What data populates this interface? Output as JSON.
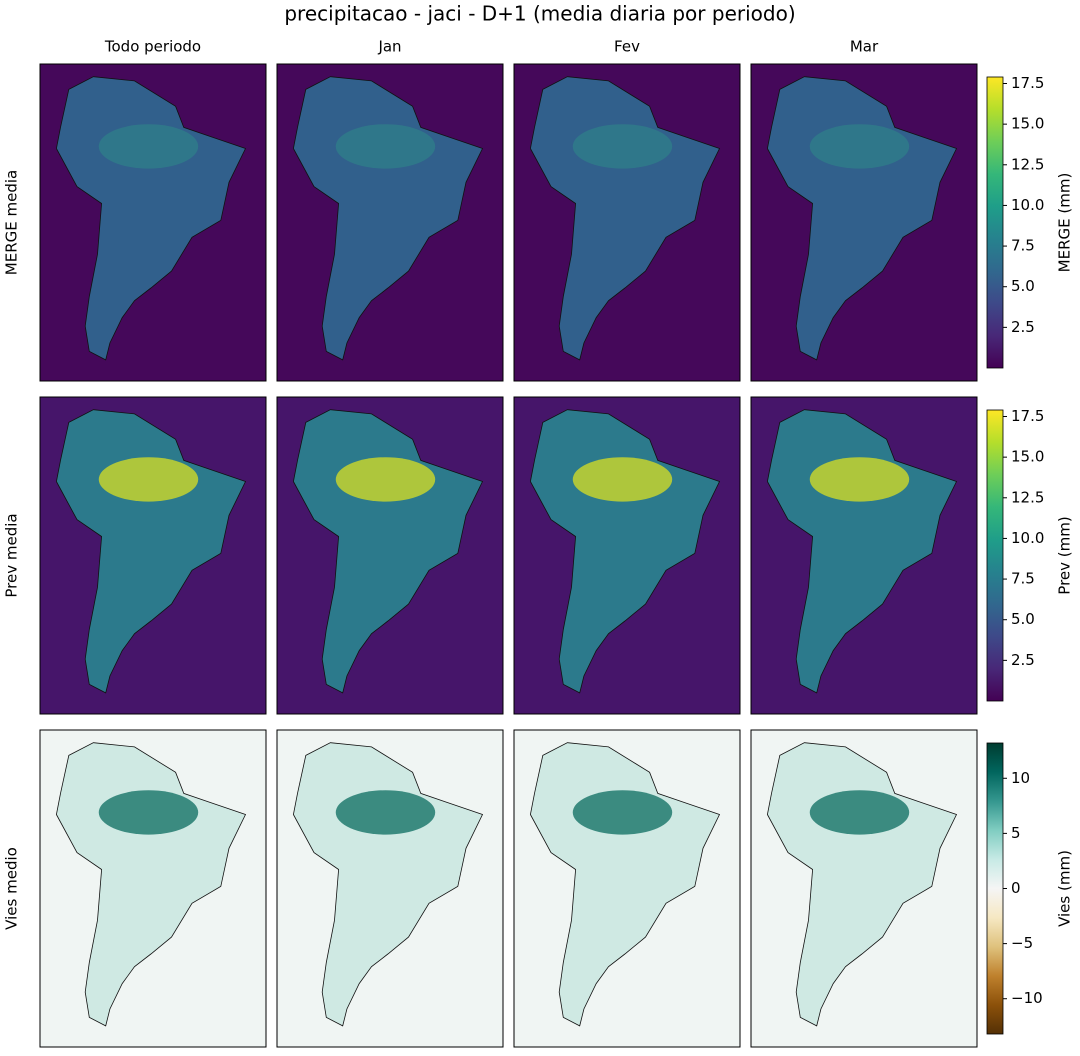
{
  "figure": {
    "title": "precipitacao - jaci - D+1 (media diaria por periodo)",
    "columns": [
      "Todo periodo",
      "Jan",
      "Fev",
      "Mar"
    ],
    "rows": [
      {
        "label": "MERGE media",
        "colorbar": {
          "label": "MERGE (mm)",
          "lim": [
            0,
            17.9
          ],
          "ticks": [
            2.5,
            5.0,
            7.5,
            10.0,
            12.5,
            15.0,
            17.5
          ],
          "colors": [
            "#440154",
            "#482878",
            "#3e4989",
            "#31688e",
            "#26828e",
            "#1f9e89",
            "#35b779",
            "#6ece58",
            "#b5de2b",
            "#fde725"
          ]
        }
      },
      {
        "label": "Prev media",
        "colorbar": {
          "label": "Prev (mm)",
          "lim": [
            0,
            17.9
          ],
          "ticks": [
            2.5,
            5.0,
            7.5,
            10.0,
            12.5,
            15.0,
            17.5
          ],
          "colors": [
            "#440154",
            "#482878",
            "#3e4989",
            "#31688e",
            "#26828e",
            "#1f9e89",
            "#35b779",
            "#6ece58",
            "#b5de2b",
            "#fde725"
          ]
        }
      },
      {
        "label": "Vies medio",
        "colorbar": {
          "label": "Vies (mm)",
          "lim": [
            -13.2,
            13.2
          ],
          "ticks": [
            {
              "value": -10,
              "label": "−10"
            },
            {
              "value": -5,
              "label": "−5"
            },
            0,
            5,
            10
          ],
          "colors": [
            "#543005",
            "#8c510a",
            "#bf812d",
            "#dfc27d",
            "#f6e8c3",
            "#f5f5f5",
            "#c7eae5",
            "#80cdc1",
            "#35978f",
            "#01665e",
            "#003c30"
          ]
        }
      }
    ]
  }
}
